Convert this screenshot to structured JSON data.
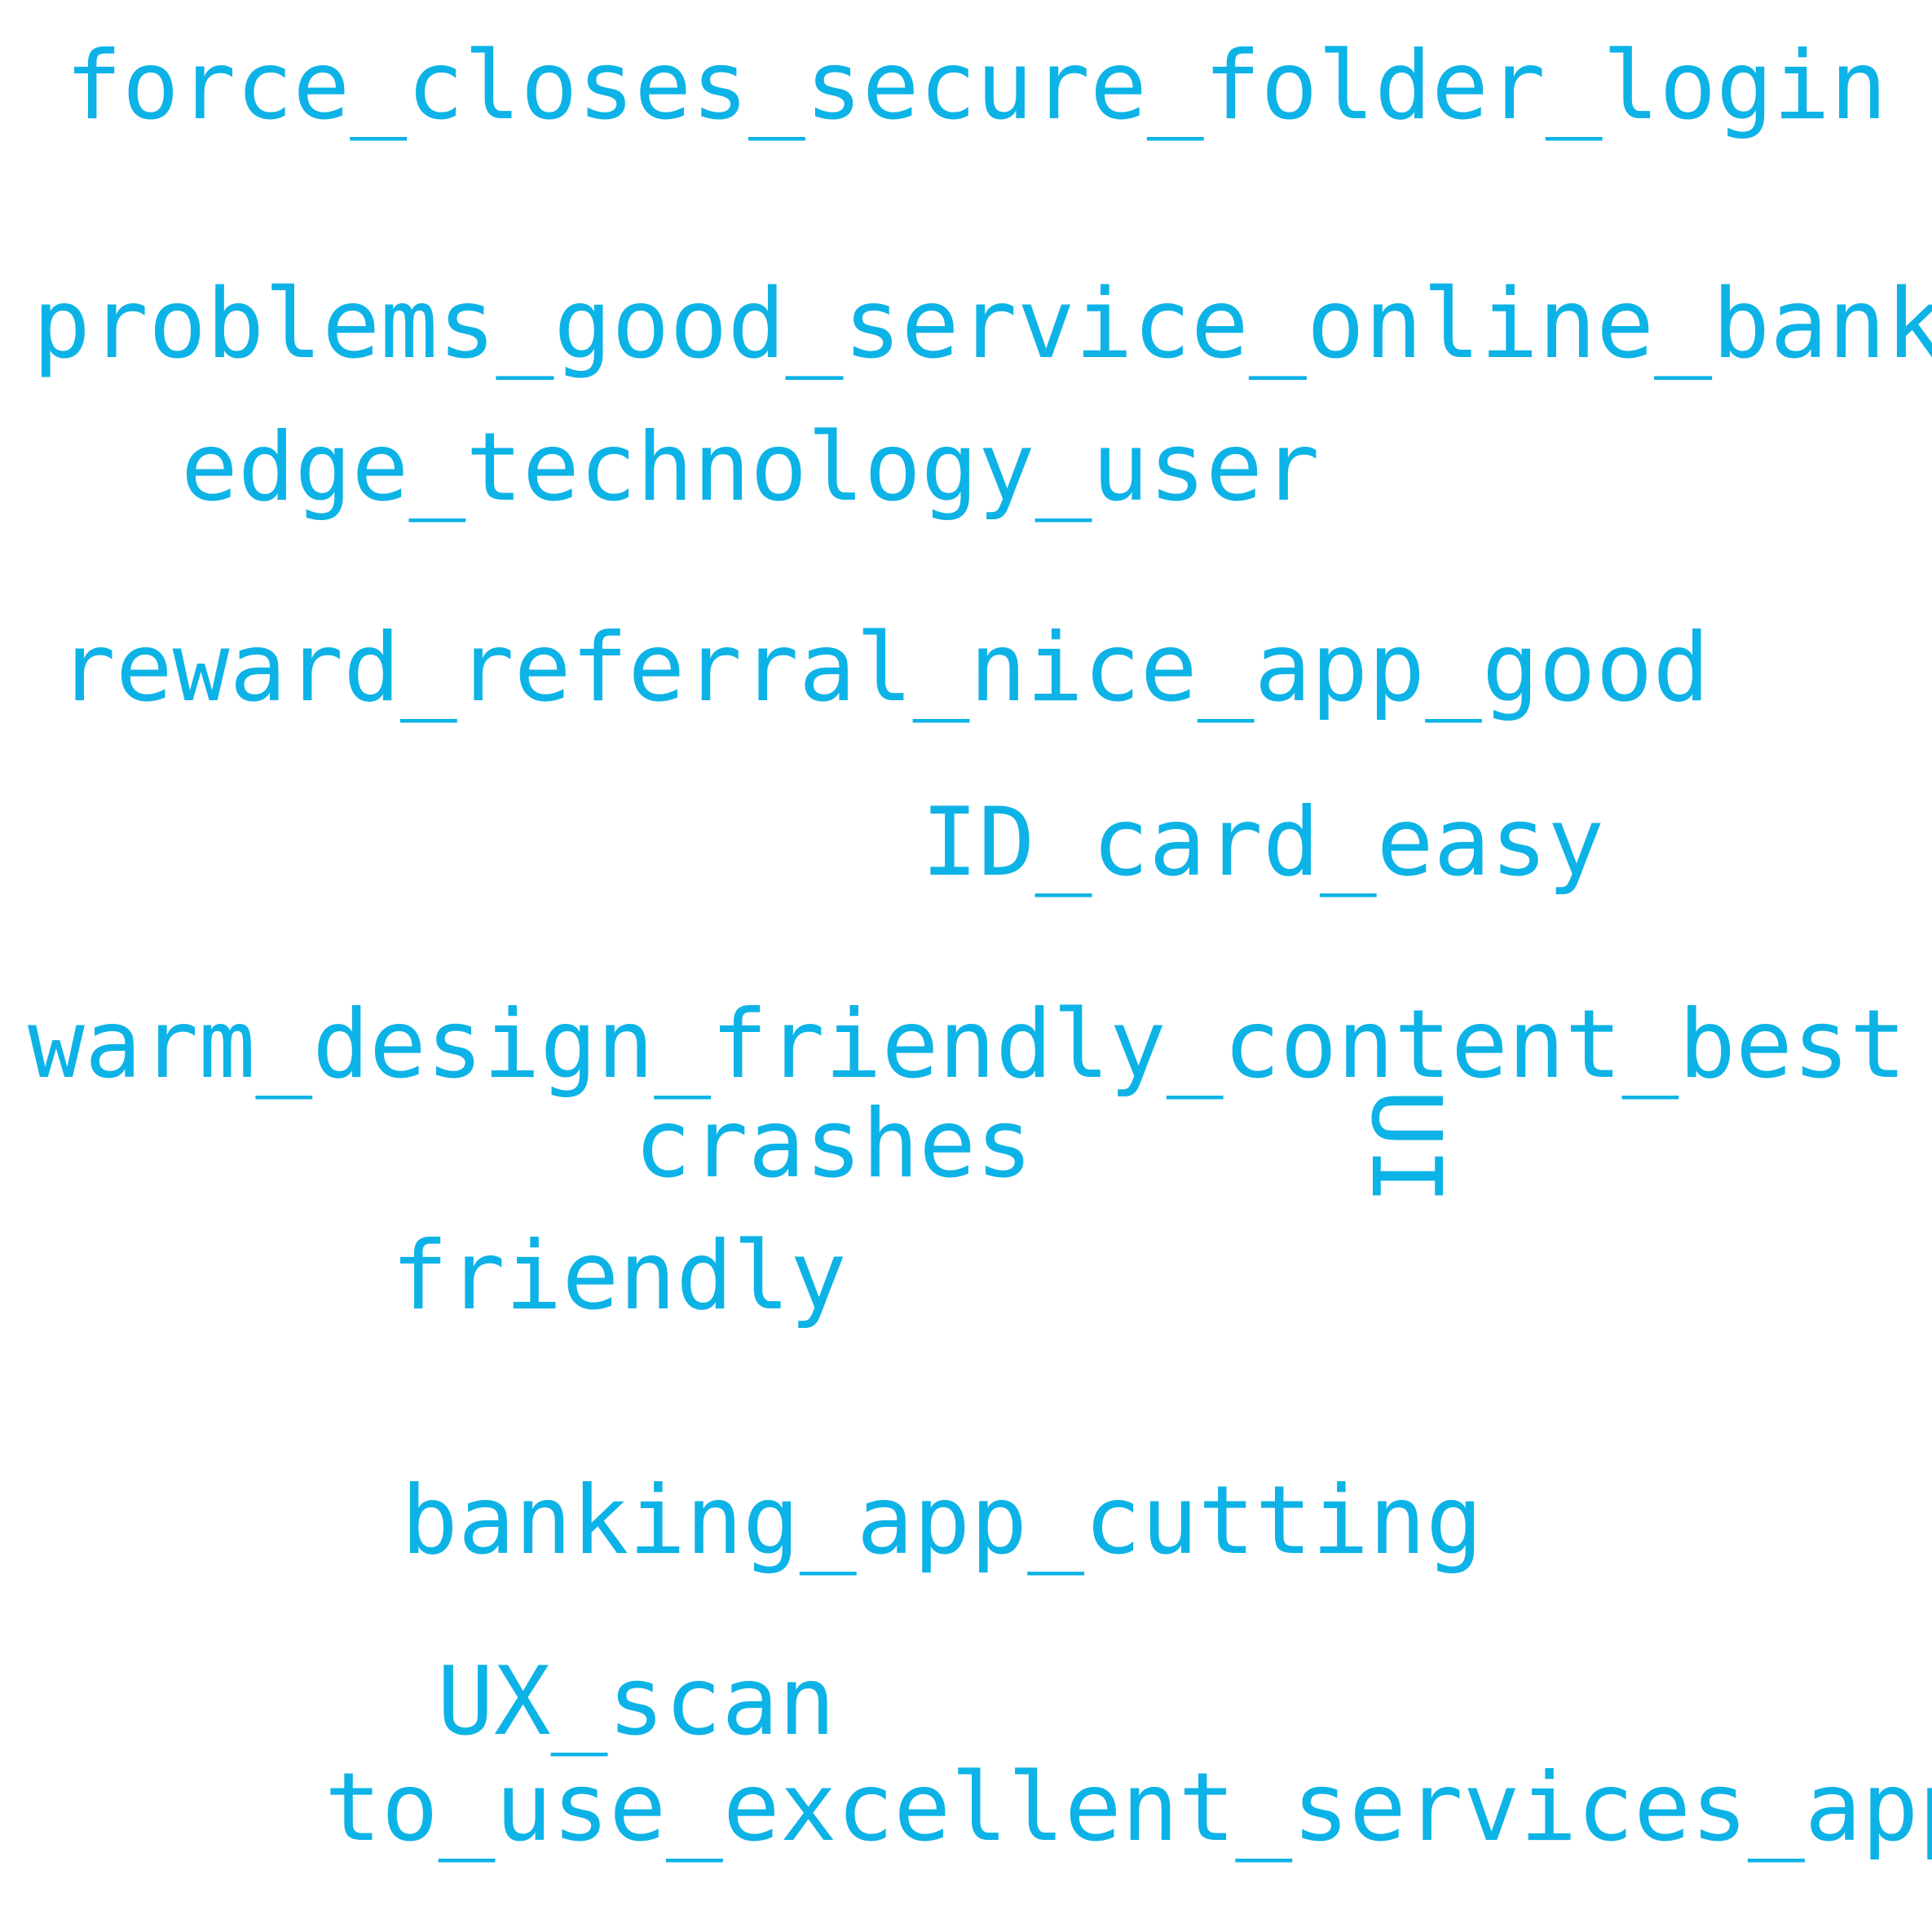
{
  "word_cloud": {
    "color": "#0DB3E6",
    "words": [
      "force_closes_secure_folder_login",
      "problems_good_service_online_bank",
      "edge_technology_user",
      "reward_referral_nice_app_good",
      "ID_card_easy",
      "warm_design_friendly_content_best",
      "crashes",
      "UI",
      "friendly",
      "banking_app_cutting",
      "UX_scan",
      "to_use_excellent_services_app"
    ]
  }
}
